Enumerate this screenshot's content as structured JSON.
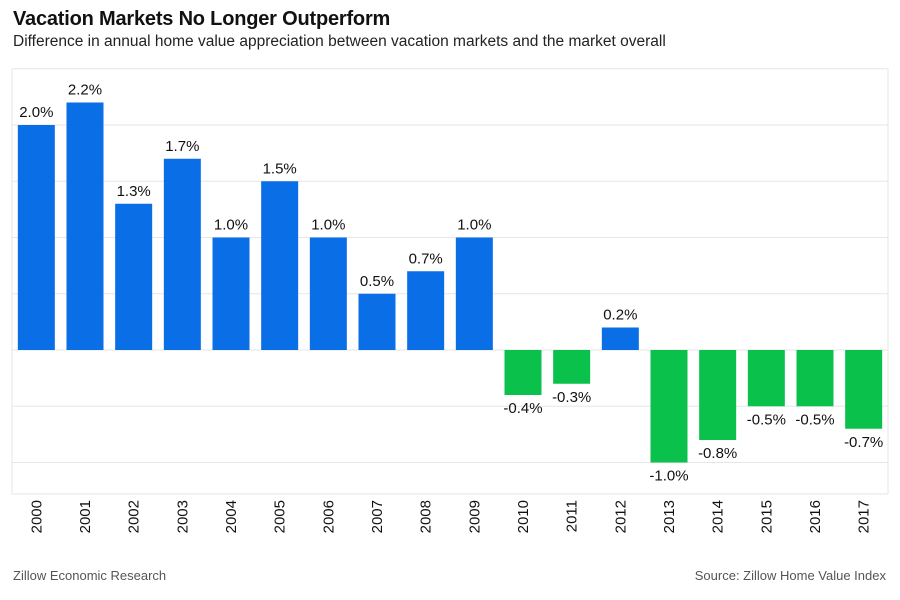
{
  "header": {
    "title": "Vacation Markets No Longer Outperform",
    "subtitle": "Difference in annual home value appreciation between vacation markets and the market overall"
  },
  "footer": {
    "left": "Zillow Economic Research",
    "right": "Source: Zillow Home Value Index"
  },
  "colors": {
    "positive": "#0a6fe6",
    "negative": "#0ac24b",
    "grid": "#e6e6e6"
  },
  "chart_data": {
    "type": "bar",
    "title": "Vacation Markets No Longer Outperform",
    "subtitle": "Difference in annual home value appreciation between vacation markets and the market overall",
    "xlabel": "",
    "ylabel": "",
    "unit": "%",
    "ylim": [
      -1.0,
      2.5
    ],
    "grid": true,
    "legend": "none",
    "categories": [
      "2000",
      "2001",
      "2002",
      "2003",
      "2004",
      "2005",
      "2006",
      "2007",
      "2008",
      "2009",
      "2010",
      "2011",
      "2012",
      "2013",
      "2014",
      "2015",
      "2016",
      "2017"
    ],
    "values": [
      2.0,
      2.2,
      1.3,
      1.7,
      1.0,
      1.5,
      1.0,
      0.5,
      0.7,
      1.0,
      -0.4,
      -0.3,
      0.2,
      -1.0,
      -0.8,
      -0.5,
      -0.5,
      -0.7
    ],
    "value_labels": [
      "2.0%",
      "2.2%",
      "1.3%",
      "1.7%",
      "1.0%",
      "1.5%",
      "1.0%",
      "0.5%",
      "0.7%",
      "1.0%",
      "-0.4%",
      "-0.3%",
      "0.2%",
      "-1.0%",
      "-0.8%",
      "-0.5%",
      "-0.5%",
      "-0.7%"
    ]
  }
}
